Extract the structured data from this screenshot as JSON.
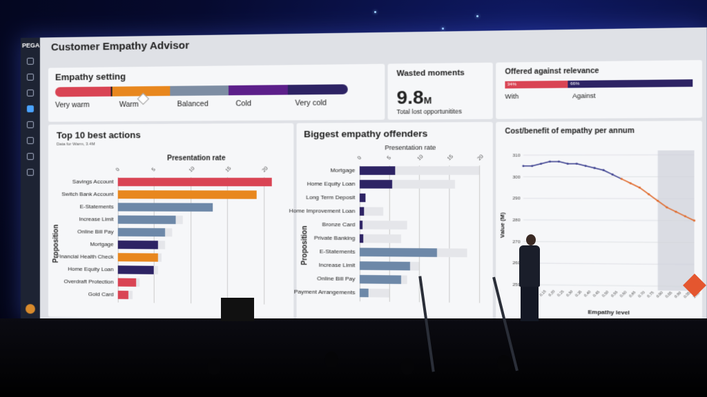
{
  "app": {
    "brand": "PEGA",
    "title": "Customer Empathy Advisor"
  },
  "empathy_setting": {
    "title": "Empathy setting",
    "levels": [
      "Very warm",
      "Warm",
      "Balanced",
      "Cold",
      "Very cold"
    ],
    "selected": "Warm",
    "colors": [
      "#d94454",
      "#e8871e",
      "#7d8da3",
      "#5c1f8a",
      "#2d2364"
    ]
  },
  "wasted_moments": {
    "title": "Wasted moments",
    "value": "9.8",
    "unit": "M",
    "caption": "Total lost opportunitites"
  },
  "offered_relevance": {
    "title": "Offered against relevance",
    "with_label": "With",
    "against_label": "Against",
    "with_pct": 34,
    "against_pct": 66,
    "with_text": "34%",
    "against_text": "66%"
  },
  "top_actions": {
    "title": "Top 10 best actions",
    "subtitle": "Data for Warm, 3.4M",
    "xlabel": "Presentation rate",
    "ylabel": "Proposition",
    "ticks": [
      "0",
      "5",
      "10",
      "15",
      "20"
    ],
    "chart_data": {
      "type": "bar",
      "categories": [
        "Savings Account",
        "Switch Bank Account",
        "E-Statements",
        "Increase Limit",
        "Online Bill Pay",
        "Mortgage",
        "Financial Health Check",
        "Home Equity Loan",
        "Overdraft Protection",
        "Gold Card"
      ],
      "values": [
        21,
        19,
        13,
        8,
        6.5,
        5.5,
        5.5,
        5,
        2.5,
        1.5
      ],
      "background": [
        21,
        19,
        13,
        9,
        7.5,
        6.5,
        6,
        5.5,
        3,
        2
      ],
      "colors": [
        "#d94454",
        "#e8871e",
        "#6d88a8",
        "#6d88a8",
        "#6d88a8",
        "#2d2364",
        "#e8871e",
        "#2d2364",
        "#d94454",
        "#d94454"
      ],
      "xlim": [
        0,
        22
      ]
    }
  },
  "empathy_offenders": {
    "title": "Biggest empathy offenders",
    "xlabel": "Presentation rate",
    "ylabel": "Proposition",
    "ticks": [
      "0",
      "5",
      "10",
      "15",
      "20"
    ],
    "chart_data": {
      "type": "bar",
      "categories": [
        "Mortgage",
        "Home Equity Loan",
        "Long Term Deposit",
        "Home Improvement Loan",
        "Bronze Card",
        "Private Banking",
        "E-Statements",
        "Increase Limit",
        "Online Bill Pay",
        "Payment Arrangements"
      ],
      "values": [
        6,
        5.5,
        1,
        0.8,
        0.5,
        0.6,
        13,
        8.5,
        7,
        1.5
      ],
      "background": [
        20,
        16,
        0,
        4,
        8,
        7,
        18,
        10,
        8,
        5
      ],
      "colors": [
        "#2d2364",
        "#2d2364",
        "#2d2364",
        "#2d2364",
        "#2d2364",
        "#2d2364",
        "#6d88a8",
        "#6d88a8",
        "#6d88a8",
        "#6d88a8"
      ],
      "xlim": [
        0,
        20
      ]
    }
  },
  "cost_benefit": {
    "title": "Cost/benefit of empathy per annum",
    "xlabel": "Empathy level",
    "ylabel": "Value (M)",
    "yticks": [
      "310",
      "300",
      "290",
      "280",
      "270",
      "260",
      "250"
    ],
    "chart_data": {
      "type": "line",
      "x": [
        0.05,
        0.1,
        0.15,
        0.2,
        0.25,
        0.3,
        0.35,
        0.4,
        0.45,
        0.5,
        0.55,
        0.6,
        0.65,
        0.7,
        0.75,
        0.8,
        0.85,
        0.9,
        0.95,
        1.0
      ],
      "y": [
        305,
        305,
        306,
        307,
        307,
        306,
        306,
        305,
        304,
        303,
        301,
        299,
        297,
        295,
        292,
        289,
        286,
        284,
        282,
        280
      ],
      "ylim": [
        248,
        312
      ],
      "colors": [
        "#3b3f8f",
        "#e06a2c"
      ]
    }
  }
}
